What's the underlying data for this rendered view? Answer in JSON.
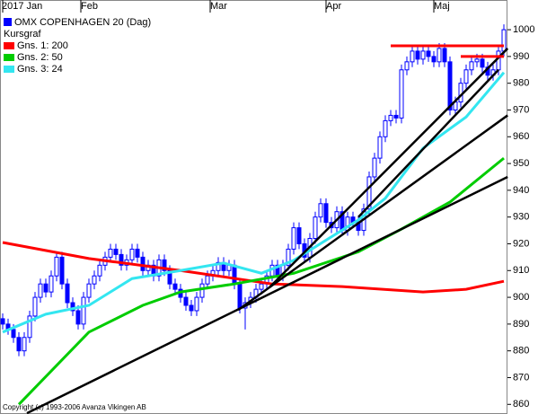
{
  "chart_data": {
    "type": "candlestick",
    "title": "OMX COPENHAGEN 20 (Dag)",
    "subtitle": "Kursgraf",
    "color": "#0000ff",
    "footer": "Copyright (c) 1993-2006 Avanza Vikingen AB",
    "categories": [
      null,
      null,
      null,
      null,
      null,
      null,
      null,
      null,
      null,
      null,
      null,
      null,
      null,
      null,
      null,
      null,
      null,
      null,
      null,
      null,
      null,
      null,
      null,
      null,
      null,
      null,
      null,
      null,
      null,
      null,
      null,
      null,
      null,
      null,
      null,
      null,
      null,
      null,
      null,
      null,
      null,
      null,
      null,
      null,
      null,
      null,
      null,
      null,
      null,
      null,
      null,
      null,
      null,
      null,
      null,
      null,
      null,
      null,
      null,
      null,
      null,
      null,
      null,
      null,
      null,
      null,
      null,
      null,
      null,
      null,
      null,
      null,
      null,
      null,
      null,
      null,
      null,
      null,
      null,
      null,
      null,
      null,
      null,
      null,
      null,
      null,
      null,
      null,
      null,
      null,
      null,
      null,
      null,
      null
    ],
    "open": [
      892,
      890,
      888,
      885,
      880,
      885,
      893,
      900,
      905,
      902,
      908,
      915,
      905,
      898,
      895,
      890,
      900,
      905,
      908,
      912,
      915,
      918,
      916,
      912,
      914,
      918,
      915,
      910,
      912,
      908,
      914,
      910,
      905,
      903,
      900,
      897,
      895,
      900,
      905,
      908,
      910,
      913,
      910,
      912,
      905,
      896,
      898,
      900,
      903,
      905,
      908,
      912,
      908,
      912,
      918,
      926,
      920,
      915,
      922,
      930,
      935,
      928,
      926,
      932,
      925,
      930,
      928,
      925,
      933,
      945,
      952,
      960,
      966,
      968,
      967,
      985,
      988,
      992,
      989,
      992,
      990,
      988,
      993,
      988,
      970,
      973,
      980,
      985,
      988,
      989,
      986,
      983,
      985,
      992
    ],
    "high": [
      894,
      892,
      890,
      887,
      887,
      895,
      902,
      907,
      907,
      910,
      917,
      917,
      907,
      900,
      897,
      902,
      907,
      910,
      914,
      917,
      920,
      920,
      918,
      916,
      920,
      920,
      917,
      914,
      914,
      916,
      916,
      912,
      907,
      905,
      902,
      899,
      902,
      907,
      910,
      912,
      915,
      915,
      914,
      914,
      907,
      900,
      902,
      905,
      907,
      910,
      914,
      914,
      914,
      920,
      928,
      928,
      922,
      924,
      932,
      937,
      937,
      930,
      934,
      934,
      932,
      932,
      930,
      935,
      947,
      954,
      962,
      968,
      970,
      970,
      987,
      990,
      994,
      994,
      994,
      994,
      992,
      995,
      995,
      990,
      975,
      982,
      987,
      990,
      991,
      991,
      988,
      987,
      994,
      1002
    ],
    "low": [
      888,
      886,
      883,
      878,
      878,
      883,
      891,
      898,
      900,
      900,
      906,
      903,
      896,
      893,
      888,
      888,
      898,
      903,
      906,
      910,
      913,
      914,
      910,
      910,
      912,
      913,
      908,
      908,
      906,
      906,
      908,
      903,
      901,
      898,
      895,
      893,
      893,
      898,
      903,
      906,
      908,
      908,
      908,
      903,
      894,
      888,
      896,
      898,
      901,
      903,
      906,
      906,
      906,
      910,
      916,
      918,
      913,
      913,
      920,
      928,
      926,
      924,
      924,
      923,
      923,
      926,
      923,
      923,
      931,
      943,
      950,
      958,
      964,
      965,
      965,
      983,
      986,
      987,
      987,
      988,
      986,
      986,
      986,
      968,
      968,
      971,
      978,
      983,
      986,
      984,
      981,
      981,
      983,
      990
    ],
    "close": [
      890,
      888,
      885,
      880,
      885,
      893,
      900,
      905,
      902,
      908,
      915,
      905,
      898,
      895,
      890,
      900,
      905,
      908,
      912,
      915,
      918,
      916,
      912,
      914,
      918,
      915,
      910,
      912,
      908,
      914,
      910,
      905,
      903,
      900,
      897,
      895,
      900,
      905,
      908,
      910,
      913,
      910,
      912,
      905,
      896,
      898,
      900,
      903,
      905,
      908,
      912,
      908,
      912,
      918,
      926,
      920,
      915,
      922,
      930,
      935,
      928,
      926,
      932,
      925,
      930,
      928,
      925,
      933,
      945,
      952,
      960,
      966,
      968,
      967,
      985,
      988,
      992,
      989,
      992,
      990,
      988,
      993,
      988,
      970,
      973,
      980,
      985,
      988,
      989,
      986,
      983,
      985,
      992,
      1000
    ],
    "series": [
      {
        "name": "Gns. 1: 200",
        "color": "#ff0000",
        "x": [
          0,
          16,
          33,
          50,
          63,
          78,
          86,
          93
        ],
        "values": [
          920.5,
          914.5,
          910,
          905,
          904,
          902,
          903,
          906
        ]
      },
      {
        "name": "Gns. 2: 50",
        "color": "#00cc00",
        "x": [
          3,
          16,
          26,
          33,
          43,
          54,
          66,
          74,
          83,
          93
        ],
        "values": [
          860,
          887,
          897,
          902,
          905,
          909,
          917,
          925.5,
          935.6,
          952
        ]
      },
      {
        "name": "Gns. 3: 24",
        "color": "#33e6f0",
        "x": [
          0,
          8,
          16,
          24,
          33,
          41,
          48,
          54,
          66,
          71,
          78,
          86,
          93
        ],
        "values": [
          887,
          893.7,
          897,
          907,
          910,
          912.8,
          909,
          913.8,
          928.9,
          937,
          955.7,
          967.4,
          984
        ]
      }
    ],
    "trendlines": [
      {
        "color": "#000000",
        "x": [
          4.5,
          93.7
        ],
        "values": [
          856.7,
          945
        ]
      },
      {
        "color": "#000000",
        "x": [
          43.7,
          93.7
        ],
        "values": [
          895.3,
          968
        ]
      },
      {
        "color": "#000000",
        "x": [
          49.5,
          93.7
        ],
        "values": [
          903.7,
          993
        ]
      },
      {
        "color": "#000000",
        "x": [
          66,
          92
        ],
        "values": [
          930,
          985
        ]
      },
      {
        "color": "#ff0000",
        "x": [
          72,
          93
        ],
        "values": [
          994,
          994
        ]
      },
      {
        "color": "#ff0000",
        "x": [
          85,
          93
        ],
        "values": [
          990,
          990
        ]
      }
    ],
    "ylim": [
      856.4,
      1011.1
    ],
    "yticks": [
      860,
      870,
      880,
      890,
      900,
      910,
      920,
      930,
      940,
      950,
      960,
      970,
      980,
      990,
      1000
    ],
    "xticks": [
      {
        "value": 0,
        "label": "2017 Jan"
      },
      {
        "value": 14.5,
        "label": "Feb"
      },
      {
        "value": 38.5,
        "label": "Mar"
      },
      {
        "value": 60,
        "label": "Apr"
      },
      {
        "value": 80,
        "label": "Maj"
      }
    ]
  }
}
